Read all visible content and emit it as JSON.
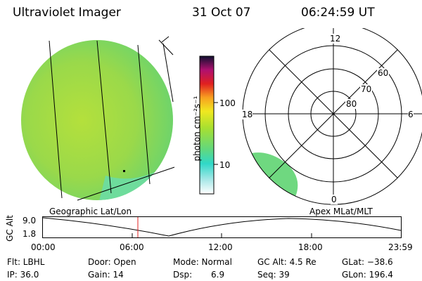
{
  "header": {
    "instrument": "Ultraviolet Imager",
    "date": "31 Oct 07",
    "time": "06:24:59 UT"
  },
  "colorbar": {
    "unit_label": "photon cm⁻²s⁻¹",
    "ticks": [
      "100",
      "10"
    ],
    "scale": "log"
  },
  "polar_plot": {
    "mlt_labels": [
      "12",
      "18",
      "6",
      "0"
    ],
    "lat_labels": [
      "60",
      "70",
      "80"
    ]
  },
  "panels": {
    "left_label": "Geographic Lat/Lon",
    "right_label": "Apex MLat/MLT"
  },
  "orbit_plot": {
    "ylabel": "GC Alt",
    "y_ticks": [
      "9.0",
      "1.8"
    ],
    "x_ticks": [
      "00:00",
      "06:00",
      "12:00",
      "18:00",
      "23:59"
    ]
  },
  "info": {
    "flt": "Flt: LBHL",
    "door": "Door: Open",
    "mode": "Mode: Normal",
    "gc_alt": "GC Alt: 4.5 Re",
    "glat": "GLat: −38.6",
    "ip": "IP: 36.0",
    "gain": "Gain: 14",
    "dsp_label": "Dsp:",
    "dsp_value": "6.9",
    "seq": "Seq: 39",
    "glon": "GLon: 196.4"
  },
  "colors": {
    "disk": "#8fdc46",
    "marker": "#e02020"
  }
}
